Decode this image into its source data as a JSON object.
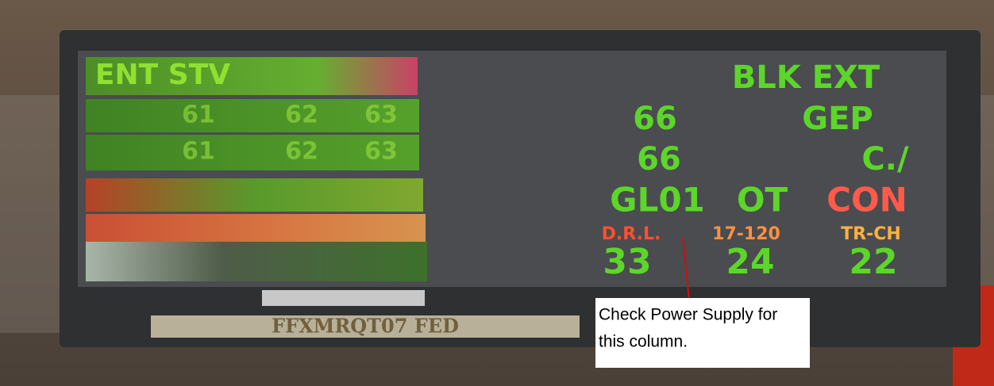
{
  "display": {
    "left_header": "ENT STV",
    "left_values": [
      "61",
      "62",
      "63",
      "61",
      "62",
      "63"
    ],
    "rows": [
      [
        "BLK EXT"
      ],
      [
        "66",
        "GEP"
      ],
      [
        "66",
        "C./"
      ],
      [
        "GL01",
        "OT",
        "CON"
      ],
      [
        "D.R.L.",
        "17-120",
        "TR-CH"
      ],
      [
        "33",
        "24",
        "22"
      ]
    ],
    "plate": "FFXMRQT07 FED"
  },
  "annotation": {
    "lines": [
      "Check Power Supply for",
      "this column."
    ]
  }
}
